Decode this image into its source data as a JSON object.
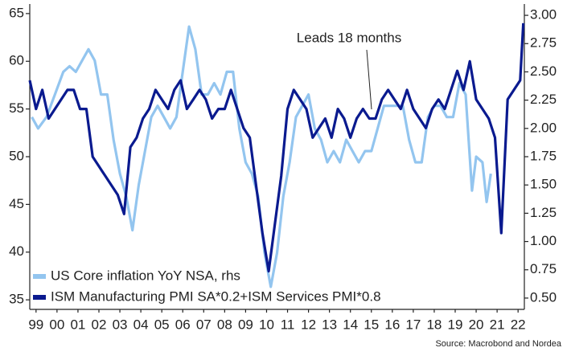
{
  "chart_data": {
    "type": "line",
    "annotation": "Leads 18 months",
    "source": "Source: Macrobond and Nordea",
    "xlim": [
      1999.2,
      2022.8
    ],
    "xticks": [
      {
        "value": 1999.5,
        "label": "99"
      },
      {
        "value": 2000.5,
        "label": "00"
      },
      {
        "value": 2001.5,
        "label": "01"
      },
      {
        "value": 2002.5,
        "label": "02"
      },
      {
        "value": 2003.5,
        "label": "03"
      },
      {
        "value": 2004.5,
        "label": "04"
      },
      {
        "value": 2005.5,
        "label": "05"
      },
      {
        "value": 2006.5,
        "label": "06"
      },
      {
        "value": 2007.5,
        "label": "07"
      },
      {
        "value": 2008.5,
        "label": "08"
      },
      {
        "value": 2009.5,
        "label": "09"
      },
      {
        "value": 2010.5,
        "label": "10"
      },
      {
        "value": 2011.5,
        "label": "11"
      },
      {
        "value": 2012.5,
        "label": "12"
      },
      {
        "value": 2013.5,
        "label": "13"
      },
      {
        "value": 2014.5,
        "label": "14"
      },
      {
        "value": 2015.5,
        "label": "15"
      },
      {
        "value": 2016.5,
        "label": "16"
      },
      {
        "value": 2017.5,
        "label": "17"
      },
      {
        "value": 2018.5,
        "label": "18"
      },
      {
        "value": 2019.5,
        "label": "19"
      },
      {
        "value": 2020.5,
        "label": "20"
      },
      {
        "value": 2021.5,
        "label": "21"
      },
      {
        "value": 2022.5,
        "label": "22"
      }
    ],
    "ylim": [
      34,
      66
    ],
    "yticks": [
      35,
      40,
      45,
      50,
      55,
      60,
      65
    ],
    "y2lim": [
      0.4,
      3.1
    ],
    "y2ticks": [
      {
        "value": 0.5,
        "label": "0.50"
      },
      0.75,
      {
        "value": 1,
        "label": "1.00"
      },
      1.25,
      {
        "value": 1.5,
        "label": "1.50"
      },
      1.75,
      {
        "value": 2,
        "label": "2.00"
      },
      2.25,
      {
        "value": 2.5,
        "label": "2.50"
      },
      2.75,
      {
        "value": 3,
        "label": "3.00"
      }
    ],
    "legend": "lower left",
    "series": [
      {
        "name": "US Core inflation YoY NSA, rhs",
        "color": "#93c5ef",
        "axis": "y2",
        "x": [
          1999.3,
          1999.6,
          2000.0,
          2000.4,
          2000.8,
          2001.1,
          2001.4,
          2001.7,
          2002.0,
          2002.3,
          2002.6,
          2002.9,
          2003.2,
          2003.5,
          2003.8,
          2004.1,
          2004.4,
          2004.7,
          2005.0,
          2005.3,
          2005.6,
          2005.9,
          2006.2,
          2006.5,
          2006.8,
          2007.1,
          2007.4,
          2007.7,
          2008.0,
          2008.3,
          2008.6,
          2008.9,
          2009.2,
          2009.5,
          2009.8,
          2010.1,
          2010.4,
          2010.7,
          2011.0,
          2011.3,
          2011.6,
          2011.9,
          2012.2,
          2012.5,
          2012.8,
          2013.1,
          2013.4,
          2013.7,
          2014.0,
          2014.3,
          2014.6,
          2014.9,
          2015.2,
          2015.5,
          2015.8,
          2016.1,
          2016.4,
          2016.7,
          2017.0,
          2017.3,
          2017.6,
          2017.9,
          2018.2,
          2018.5,
          2018.8,
          2019.1,
          2019.4,
          2019.7,
          2020.0,
          2020.3,
          2020.5,
          2020.8,
          2021.0,
          2021.2
        ],
        "values": [
          2.1,
          2.0,
          2.1,
          2.3,
          2.5,
          2.55,
          2.5,
          2.6,
          2.7,
          2.6,
          2.3,
          2.3,
          1.9,
          1.6,
          1.4,
          1.1,
          1.5,
          1.8,
          2.1,
          2.2,
          2.1,
          2.0,
          2.1,
          2.5,
          2.9,
          2.7,
          2.3,
          2.3,
          2.4,
          2.3,
          2.5,
          2.5,
          2.0,
          1.7,
          1.6,
          1.4,
          0.9,
          0.6,
          0.9,
          1.4,
          1.7,
          2.1,
          2.2,
          2.3,
          2.0,
          1.9,
          1.7,
          1.8,
          1.7,
          1.9,
          1.8,
          1.7,
          1.8,
          1.8,
          2.0,
          2.2,
          2.2,
          2.2,
          2.2,
          1.9,
          1.7,
          1.7,
          2.1,
          2.2,
          2.2,
          2.1,
          2.1,
          2.4,
          2.3,
          1.45,
          1.75,
          1.7,
          1.35,
          1.6
        ]
      },
      {
        "name": "ISM Manufacturing PMI SA*0.2+ISM Services PMI*0.8",
        "color": "#0a1a8f",
        "axis": "y",
        "x": [
          1999.2,
          1999.5,
          1999.8,
          2000.1,
          2000.4,
          2000.7,
          2001.0,
          2001.3,
          2001.6,
          2001.9,
          2002.2,
          2002.5,
          2002.8,
          2003.1,
          2003.4,
          2003.7,
          2004.0,
          2004.3,
          2004.6,
          2004.9,
          2005.2,
          2005.5,
          2005.8,
          2006.1,
          2006.4,
          2006.7,
          2007.0,
          2007.3,
          2007.6,
          2007.9,
          2008.2,
          2008.5,
          2008.8,
          2009.1,
          2009.4,
          2009.7,
          2010.0,
          2010.3,
          2010.6,
          2010.9,
          2011.2,
          2011.5,
          2011.8,
          2012.1,
          2012.4,
          2012.7,
          2013.0,
          2013.3,
          2013.6,
          2013.9,
          2014.2,
          2014.5,
          2014.8,
          2015.1,
          2015.4,
          2015.7,
          2016.0,
          2016.3,
          2016.6,
          2016.9,
          2017.2,
          2017.5,
          2017.8,
          2018.1,
          2018.4,
          2018.7,
          2019.0,
          2019.3,
          2019.6,
          2019.9,
          2020.2,
          2020.5,
          2020.8,
          2021.1,
          2021.4,
          2021.7,
          2022.0,
          2022.3,
          2022.6,
          2022.75
        ],
        "values": [
          58,
          55,
          57,
          54,
          55,
          56,
          57,
          57,
          55,
          55,
          50,
          49,
          48,
          47,
          46,
          44,
          51,
          52,
          54,
          55,
          57,
          56,
          55,
          57,
          58,
          55,
          56,
          57,
          56,
          54,
          55,
          55,
          57,
          55,
          53,
          52,
          47,
          42,
          38,
          43,
          48,
          55,
          57,
          56,
          55,
          52,
          53,
          54,
          52,
          55,
          54,
          52,
          54,
          55,
          54,
          54,
          56,
          57,
          56,
          55,
          57,
          55,
          54,
          53,
          55,
          56,
          55,
          57,
          59,
          57,
          60,
          56,
          55,
          54,
          52,
          42,
          56,
          57,
          58,
          64
        ]
      }
    ]
  }
}
